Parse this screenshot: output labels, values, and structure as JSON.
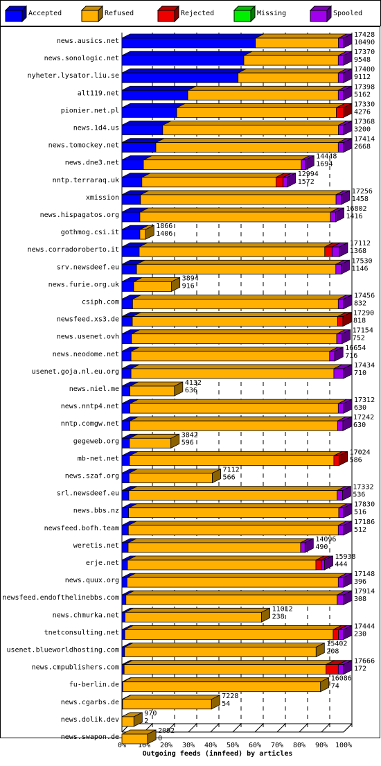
{
  "colors": {
    "Accepted": "#0000ff",
    "Refused": "#ffb000",
    "Rejected": "#ee0000",
    "Missing": "#00ee00",
    "Spooled": "#a000ee"
  },
  "legend": [
    "Accepted",
    "Refused",
    "Rejected",
    "Missing",
    "Spooled"
  ],
  "chart_data": {
    "type": "bar",
    "orientation": "horizontal",
    "stacked": true,
    "percent_scale": true,
    "xlabel": "Outgoing feeds (innfeed) by articles",
    "xlim": [
      0,
      100
    ],
    "xticks": [
      "0%",
      "10%",
      "20%",
      "30%",
      "40%",
      "50%",
      "60%",
      "70%",
      "80%",
      "90%",
      "100%"
    ],
    "grid": "vertical dashed",
    "legend_position": "top",
    "feeds": [
      {
        "name": "news.ausics.net",
        "total": "17428",
        "accepted_label": "10490",
        "pct": [
          60.2,
          37.5,
          0,
          0,
          2.3
        ]
      },
      {
        "name": "news.sonologic.net",
        "total": "17370",
        "accepted_label": "9548",
        "pct": [
          55.0,
          42.6,
          0,
          0,
          2.4
        ]
      },
      {
        "name": "nyheter.lysator.liu.se",
        "total": "17400",
        "accepted_label": "9112",
        "pct": [
          52.4,
          45.2,
          0,
          0,
          2.4
        ]
      },
      {
        "name": "alt119.net",
        "total": "17398",
        "accepted_label": "5162",
        "pct": [
          29.7,
          67.9,
          0,
          0,
          2.4
        ]
      },
      {
        "name": "pionier.net.pl",
        "total": "17330",
        "accepted_label": "4276",
        "pct": [
          24.7,
          72.0,
          3.3,
          0,
          0
        ]
      },
      {
        "name": "news.1d4.us",
        "total": "17368",
        "accepted_label": "3200",
        "pct": [
          18.4,
          79.3,
          0,
          0,
          2.3
        ]
      },
      {
        "name": "news.tomockey.net",
        "total": "17414",
        "accepted_label": "2668",
        "pct": [
          15.3,
          82.3,
          0,
          0,
          2.4
        ]
      },
      {
        "name": "news.dne3.net",
        "total": "14448",
        "accepted_label": "1694",
        "pct": [
          9.7,
          71.2,
          0,
          0,
          2.0
        ]
      },
      {
        "name": "nntp.terraraq.uk",
        "total": "12994",
        "accepted_label": "1572",
        "pct": [
          9.0,
          60.5,
          3.2,
          0,
          1.9
        ]
      },
      {
        "name": "xmission",
        "total": "17256",
        "accepted_label": "1458",
        "pct": [
          8.4,
          88.2,
          0,
          0,
          2.4
        ]
      },
      {
        "name": "news.hispagatos.org",
        "total": "16802",
        "accepted_label": "1416",
        "pct": [
          8.1,
          86.0,
          0,
          0,
          2.3
        ]
      },
      {
        "name": "gothmog.csi.it",
        "total": "1866",
        "accepted_label": "1406",
        "pct": [
          8.1,
          2.6,
          0,
          0,
          0
        ]
      },
      {
        "name": "news.corradoroberto.it",
        "total": "17112",
        "accepted_label": "1368",
        "pct": [
          7.8,
          83.7,
          3.3,
          0,
          3.3
        ]
      },
      {
        "name": "srv.newsdeef.eu",
        "total": "17530",
        "accepted_label": "1146",
        "pct": [
          6.6,
          89.9,
          0,
          0,
          2.4
        ]
      },
      {
        "name": "news.furie.org.uk",
        "total": "3894",
        "accepted_label": "916",
        "pct": [
          5.3,
          17.1,
          0,
          0,
          0
        ]
      },
      {
        "name": "csiph.com",
        "total": "17456",
        "accepted_label": "832",
        "pct": [
          4.8,
          92.8,
          0,
          0,
          2.4
        ]
      },
      {
        "name": "newsfeed.xs3.de",
        "total": "17290",
        "accepted_label": "818",
        "pct": [
          4.7,
          92.6,
          2.4,
          0,
          0
        ]
      },
      {
        "name": "news.usenet.ovh",
        "total": "17154",
        "accepted_label": "752",
        "pct": [
          4.3,
          92.6,
          0,
          0,
          2.4
        ]
      },
      {
        "name": "news.neodome.net",
        "total": "16654",
        "accepted_label": "716",
        "pct": [
          4.1,
          89.6,
          0,
          0,
          2.3
        ]
      },
      {
        "name": "usenet.goja.nl.eu.org",
        "total": "17434",
        "accepted_label": "710",
        "pct": [
          4.1,
          91.5,
          0,
          0,
          4.4
        ]
      },
      {
        "name": "news.niel.me",
        "total": "4132",
        "accepted_label": "636",
        "pct": [
          3.6,
          20.1,
          0,
          0,
          0
        ]
      },
      {
        "name": "news.nntp4.net",
        "total": "17312",
        "accepted_label": "630",
        "pct": [
          3.6,
          94.0,
          0,
          0,
          2.4
        ]
      },
      {
        "name": "nntp.comgw.net",
        "total": "17242",
        "accepted_label": "630",
        "pct": [
          3.6,
          93.7,
          0,
          0,
          2.4
        ]
      },
      {
        "name": "gegeweb.org",
        "total": "3842",
        "accepted_label": "596",
        "pct": [
          3.4,
          18.7,
          0,
          0,
          0
        ]
      },
      {
        "name": "mb-net.net",
        "total": "17024",
        "accepted_label": "586",
        "pct": [
          3.4,
          92.2,
          2.4,
          0,
          0
        ]
      },
      {
        "name": "news.szaf.org",
        "total": "7112",
        "accepted_label": "566",
        "pct": [
          3.2,
          37.6,
          0,
          0,
          0
        ]
      },
      {
        "name": "srl.newsdeef.eu",
        "total": "17332",
        "accepted_label": "536",
        "pct": [
          3.1,
          94.0,
          0,
          0,
          2.4
        ]
      },
      {
        "name": "news.bbs.nz",
        "total": "17830",
        "accepted_label": "516",
        "pct": [
          3.0,
          94.8,
          0,
          0,
          2.2
        ]
      },
      {
        "name": "newsfeed.bofh.team",
        "total": "17186",
        "accepted_label": "512",
        "pct": [
          2.9,
          94.7,
          0,
          0,
          2.4
        ]
      },
      {
        "name": "weretis.net",
        "total": "14096",
        "accepted_label": "490",
        "pct": [
          2.8,
          77.8,
          0,
          0,
          2.0
        ]
      },
      {
        "name": "erje.net",
        "total": "15938",
        "accepted_label": "444",
        "pct": [
          2.5,
          85.0,
          2.5,
          0,
          1.4
        ]
      },
      {
        "name": "news.quux.org",
        "total": "17148",
        "accepted_label": "396",
        "pct": [
          2.3,
          95.3,
          0,
          0,
          2.4
        ]
      },
      {
        "name": "newsfeed.endofthelinebbs.com",
        "total": "17914",
        "accepted_label": "308",
        "pct": [
          1.8,
          95.3,
          0,
          0,
          2.9
        ]
      },
      {
        "name": "news.chmurka.net",
        "total": "11012",
        "accepted_label": "238",
        "pct": [
          1.4,
          61.6,
          0,
          0,
          0
        ]
      },
      {
        "name": "tnetconsulting.net",
        "total": "17444",
        "accepted_label": "230",
        "pct": [
          1.3,
          94.0,
          2.4,
          0,
          2.3
        ]
      },
      {
        "name": "usenet.blueworldhosting.com",
        "total": "15402",
        "accepted_label": "208",
        "pct": [
          1.2,
          86.4,
          0,
          0,
          0
        ]
      },
      {
        "name": "news.cmpublishers.com",
        "total": "17666",
        "accepted_label": "172",
        "pct": [
          1.0,
          91.1,
          5.5,
          0,
          2.4
        ]
      },
      {
        "name": "fu-berlin.de",
        "total": "16086",
        "accepted_label": "74",
        "pct": [
          0.4,
          89.2,
          0,
          0,
          0
        ]
      },
      {
        "name": "news.cgarbs.de",
        "total": "7228",
        "accepted_label": "54",
        "pct": [
          0.3,
          40.1,
          0,
          0,
          0
        ]
      },
      {
        "name": "news.dolik.dev",
        "total": "970",
        "accepted_label": "2",
        "pct": [
          0.01,
          5.4,
          0,
          0,
          0
        ]
      },
      {
        "name": "news.swapon.de",
        "total": "2092",
        "accepted_label": "0",
        "pct": [
          0,
          11.6,
          0,
          0,
          0
        ]
      }
    ]
  }
}
